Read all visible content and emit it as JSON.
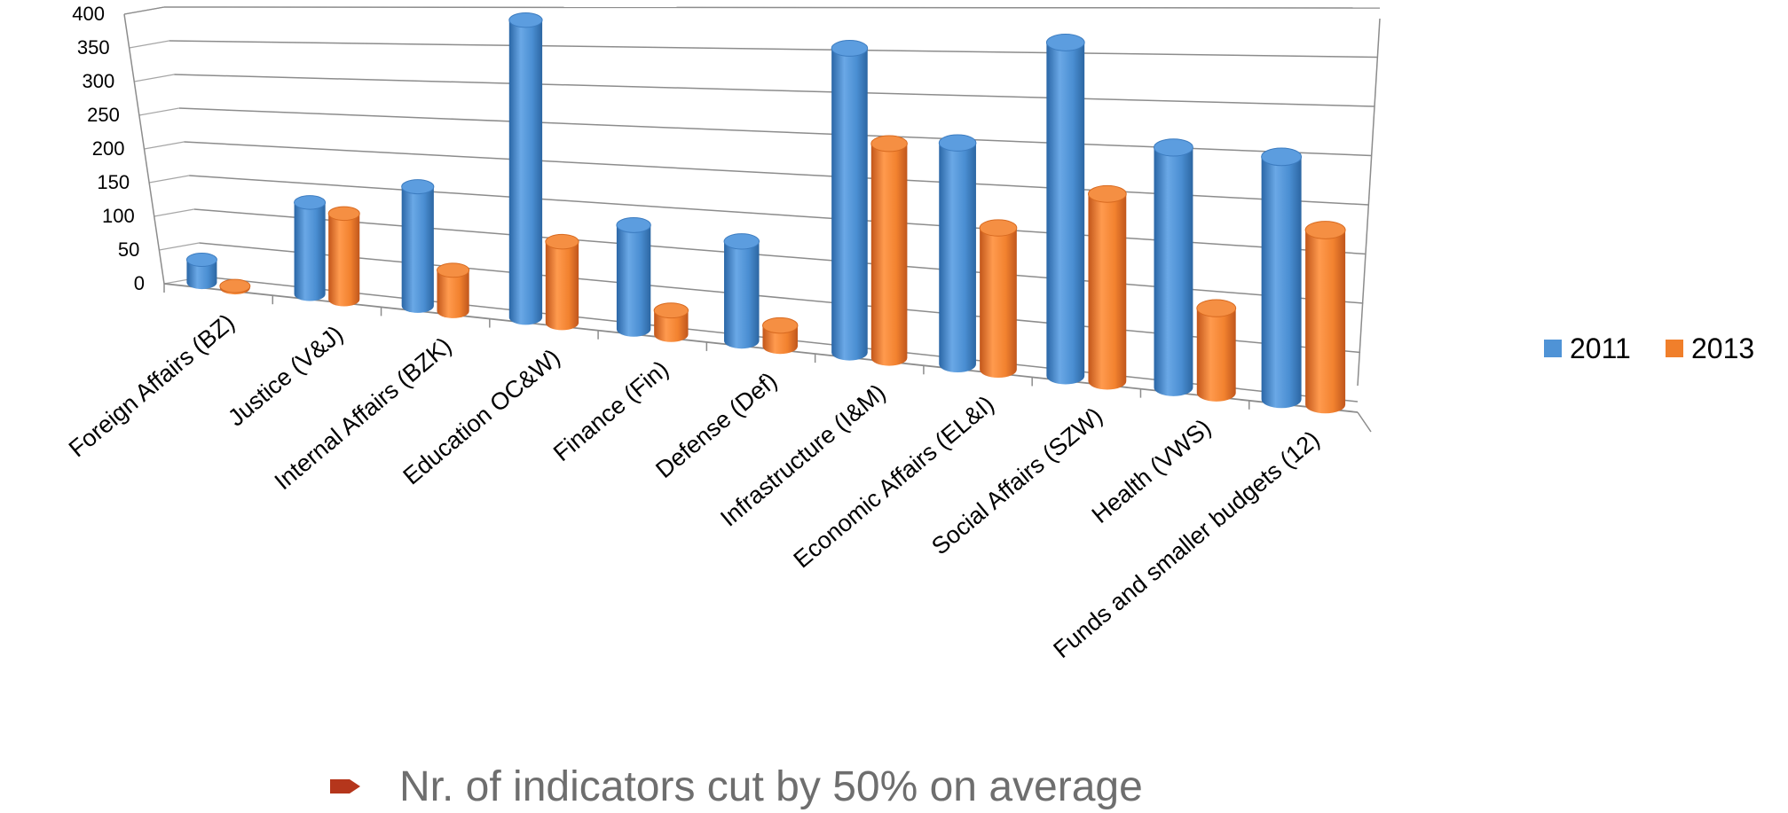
{
  "chart_data": {
    "type": "bar",
    "categories": [
      "Foreign Affairs (BZ)",
      "Justice (V&J)",
      "Internal Affairs (BZK)",
      "Education OC&W)",
      "Finance (Fin)",
      "Defense (Def)",
      "Infrastructure (I&M)",
      "Economic Affairs (EL&I)",
      "Social Affairs (SZW)",
      "Health (VWS)",
      "Funds and smaller budgets (12)"
    ],
    "series": [
      {
        "name": "2011",
        "color": "#4f93d6",
        "values": [
          33,
          128,
          160,
          385,
          130,
          120,
          355,
          250,
          365,
          255,
          250
        ]
      },
      {
        "name": "2013",
        "color": "#f07f2b",
        "values": [
          2,
          120,
          55,
          105,
          30,
          25,
          250,
          160,
          205,
          90,
          180
        ]
      }
    ],
    "yaxis": {
      "ticks": [
        "0",
        "50",
        "100",
        "150",
        "200",
        "250",
        "300",
        "350",
        "400"
      ],
      "ylim": [
        0,
        400
      ]
    },
    "grid": true,
    "legend": "right",
    "style": "3d-cylinder"
  },
  "bullet": {
    "icon": "arrow-bullet-icon",
    "color": "#b5361c",
    "text": "Nr. of indicators cut by 50% on average"
  }
}
